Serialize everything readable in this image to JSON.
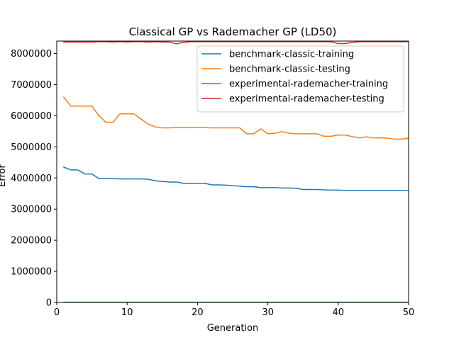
{
  "chart_data": {
    "type": "line",
    "title": "Classical GP vs Rademacher GP (LD50)",
    "xlabel": "Generation",
    "ylabel": "Error",
    "xlim": [
      0,
      50
    ],
    "ylim": [
      0,
      8400000
    ],
    "xticks": [
      0,
      10,
      20,
      30,
      40,
      50
    ],
    "yticks": [
      0,
      1000000,
      2000000,
      3000000,
      4000000,
      5000000,
      6000000,
      7000000,
      8000000
    ],
    "grid": false,
    "legend_position": "top-right",
    "x": [
      1,
      2,
      3,
      4,
      5,
      6,
      7,
      8,
      9,
      10,
      11,
      12,
      13,
      14,
      15,
      16,
      17,
      18,
      19,
      20,
      21,
      22,
      23,
      24,
      25,
      26,
      27,
      28,
      29,
      30,
      31,
      32,
      33,
      34,
      35,
      36,
      37,
      38,
      39,
      40,
      41,
      42,
      43,
      44,
      45,
      46,
      47,
      48,
      49,
      50
    ],
    "series": [
      {
        "name": "benchmark-classic-training",
        "color": "#1f77b4",
        "values": [
          4350000,
          4260000,
          4260000,
          4130000,
          4130000,
          3980000,
          3980000,
          3980000,
          3970000,
          3970000,
          3970000,
          3970000,
          3960000,
          3910000,
          3890000,
          3870000,
          3870000,
          3830000,
          3830000,
          3830000,
          3830000,
          3780000,
          3780000,
          3770000,
          3750000,
          3740000,
          3720000,
          3720000,
          3690000,
          3690000,
          3690000,
          3680000,
          3680000,
          3670000,
          3630000,
          3630000,
          3630000,
          3620000,
          3610000,
          3610000,
          3600000,
          3600000,
          3600000,
          3600000,
          3600000,
          3600000,
          3600000,
          3600000,
          3600000,
          3600000
        ]
      },
      {
        "name": "benchmark-classic-testing",
        "color": "#ff7f0e",
        "values": [
          6600000,
          6310000,
          6310000,
          6310000,
          6310000,
          6000000,
          5790000,
          5790000,
          6060000,
          6060000,
          6060000,
          5890000,
          5730000,
          5640000,
          5610000,
          5610000,
          5620000,
          5620000,
          5620000,
          5620000,
          5620000,
          5610000,
          5610000,
          5610000,
          5610000,
          5610000,
          5420000,
          5420000,
          5580000,
          5420000,
          5440000,
          5490000,
          5440000,
          5420000,
          5420000,
          5420000,
          5420000,
          5340000,
          5340000,
          5380000,
          5380000,
          5330000,
          5290000,
          5320000,
          5290000,
          5290000,
          5280000,
          5250000,
          5250000,
          5280000
        ]
      },
      {
        "name": "experimental-rademacher-training",
        "color": "#2ca02c",
        "values": [
          8000,
          8000,
          8000,
          8000,
          8000,
          8000,
          8000,
          8000,
          8000,
          8000,
          8000,
          8000,
          8000,
          8000,
          8000,
          8000,
          8000,
          8000,
          8000,
          8000,
          8000,
          8000,
          8000,
          8000,
          8000,
          8000,
          8000,
          8000,
          8000,
          8000,
          8000,
          8000,
          8000,
          8000,
          8000,
          8000,
          8000,
          8000,
          8000,
          8000,
          8000,
          8000,
          8000,
          8000,
          8000,
          8000,
          8000,
          8000,
          8000,
          8000
        ]
      },
      {
        "name": "experimental-rademacher-testing",
        "color": "#d62728",
        "values": [
          8370000,
          8370000,
          8370000,
          8370000,
          8370000,
          8380000,
          8380000,
          8370000,
          8380000,
          8370000,
          8380000,
          8380000,
          8370000,
          8380000,
          8370000,
          8370000,
          8310000,
          8360000,
          8380000,
          8380000,
          8380000,
          8380000,
          8380000,
          8380000,
          8380000,
          8380000,
          8380000,
          8380000,
          8380000,
          8380000,
          8380000,
          8380000,
          8380000,
          8380000,
          8380000,
          8380000,
          8380000,
          8380000,
          8380000,
          8320000,
          8320000,
          8360000,
          8380000,
          8380000,
          8380000,
          8380000,
          8380000,
          8380000,
          8380000,
          8380000
        ]
      }
    ]
  }
}
